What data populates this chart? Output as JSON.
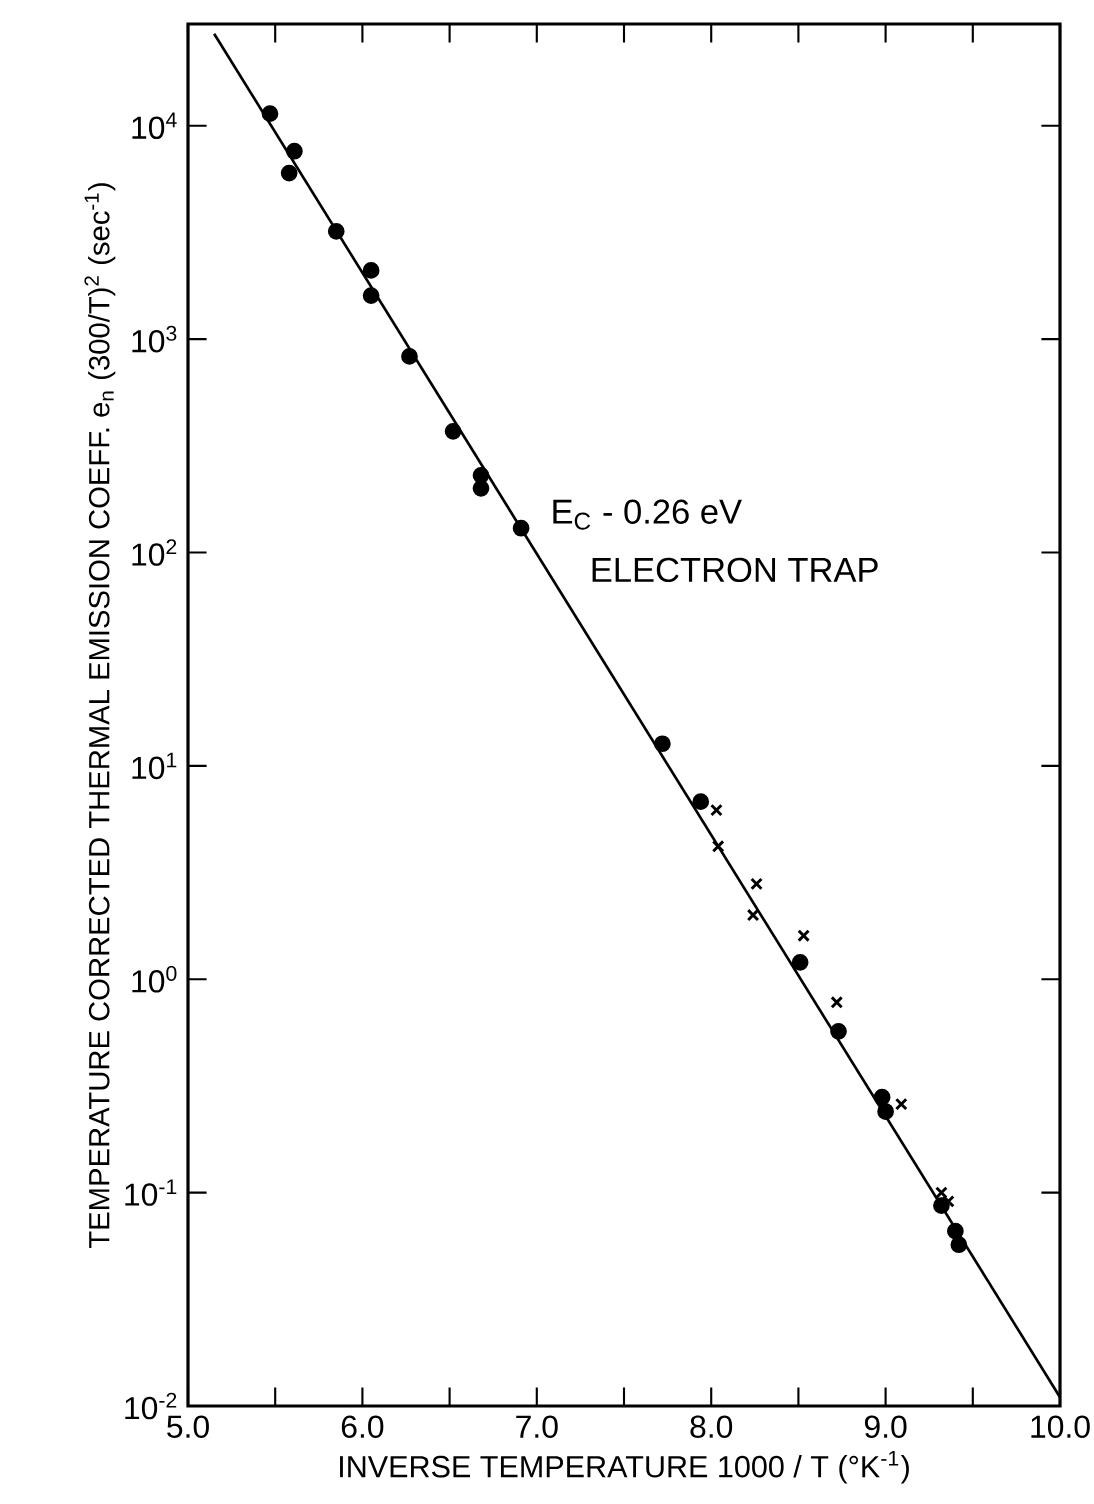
{
  "chart_data": {
    "type": "scatter",
    "log": "y",
    "xlabel": "INVERSE TEMPERATURE 1000 / T   (°K$^{-1}$)",
    "ylabel": "TEMPERATURE CORRECTED THERMAL EMISSION COEFF. e$_{n}$ (300/T)$^{2}$ (sec$^{-1}$)",
    "annotations": [
      "E$_{C}$ - 0.26 eV",
      "ELECTRON TRAP"
    ],
    "xlim": [
      5.0,
      10.0
    ],
    "ylim": [
      0.01,
      30000
    ],
    "xticks": [
      {
        "value": 5.0,
        "label": "5.0"
      },
      {
        "value": 5.5,
        "label": null
      },
      {
        "value": 6.0,
        "label": "6.0"
      },
      {
        "value": 6.5,
        "label": null
      },
      {
        "value": 7.0,
        "label": "7.0"
      },
      {
        "value": 7.5,
        "label": null
      },
      {
        "value": 8.0,
        "label": "8.0"
      },
      {
        "value": 8.5,
        "label": null
      },
      {
        "value": 9.0,
        "label": "9.0"
      },
      {
        "value": 9.5,
        "label": null
      },
      {
        "value": 10.0,
        "label": "10.0"
      }
    ],
    "yticks": [
      {
        "value": 0.01,
        "label": "10$^{-2}$"
      },
      {
        "value": 0.1,
        "label": "10$^{-1}$"
      },
      {
        "value": 1,
        "label": "10$^{0}$"
      },
      {
        "value": 10,
        "label": "10$^{1}$"
      },
      {
        "value": 100,
        "label": "10$^{2}$"
      },
      {
        "value": 1000,
        "label": "10$^{3}$"
      },
      {
        "value": 10000,
        "label": "10$^{4}$"
      }
    ],
    "series": [
      {
        "type": "scatter",
        "marker": "circle",
        "color": "#000000",
        "x": [
          5.47,
          5.61,
          5.58,
          5.85,
          6.05,
          6.05,
          6.27,
          6.52,
          6.68,
          6.68,
          6.91,
          7.72,
          7.94,
          8.51,
          8.73,
          8.98,
          9.0,
          9.32,
          9.4,
          9.42
        ],
        "values": [
          11400,
          7600,
          6000,
          3200,
          2100,
          1600,
          830,
          370,
          230,
          200,
          130,
          12.7,
          6.8,
          1.2,
          0.57,
          0.28,
          0.24,
          0.087,
          0.066,
          0.057
        ]
      },
      {
        "type": "scatter",
        "marker": "cross",
        "color": "#000000",
        "x": [
          8.03,
          8.04,
          8.26,
          8.24,
          8.53,
          8.72,
          9.09,
          9.32,
          9.36
        ],
        "values": [
          6.2,
          4.2,
          2.8,
          2.0,
          1.6,
          0.78,
          0.26,
          0.1,
          0.091
        ]
      },
      {
        "type": "line",
        "marker": "none",
        "color": "#000000",
        "x": [
          5.15,
          10.0
        ],
        "values": [
          27000,
          0.011
        ]
      }
    ]
  }
}
